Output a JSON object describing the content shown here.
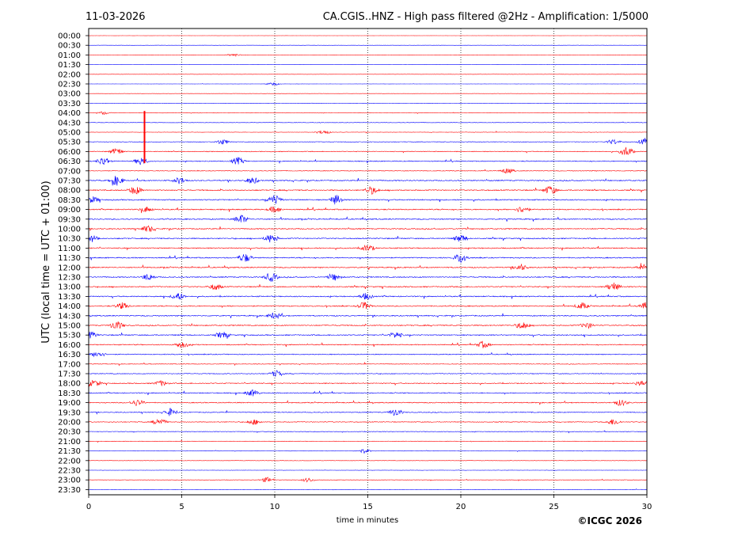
{
  "header": {
    "date": "11-03-2026",
    "title": "CA.CGIS..HNZ - High pass filtered @2Hz - Amplification: 1/5000"
  },
  "footer": {
    "copyright": "©ICGC 2026"
  },
  "colors": {
    "trace_even": "#ff0000",
    "trace_odd": "#0000ff",
    "grid": "#000000",
    "background": "#ffffff"
  },
  "chart_data": {
    "type": "line",
    "xlabel": "time in minutes",
    "ylabel": "UTC (local time = UTC + 01:00)",
    "xlim": [
      0,
      30
    ],
    "xticks": [
      "0",
      "5",
      "10",
      "15",
      "20",
      "25",
      "30"
    ],
    "grid": "vertical dotted at 5, 10, 15, 20, 25",
    "rows": [
      "00:00",
      "00:30",
      "01:00",
      "01:30",
      "02:00",
      "02:30",
      "03:00",
      "03:30",
      "04:00",
      "04:30",
      "05:00",
      "05:30",
      "06:00",
      "06:30",
      "07:00",
      "07:30",
      "08:00",
      "08:30",
      "09:00",
      "09:30",
      "10:00",
      "10:30",
      "11:00",
      "11:30",
      "12:00",
      "12:30",
      "13:00",
      "13:30",
      "14:00",
      "14:30",
      "15:00",
      "15:30",
      "16:00",
      "16:30",
      "17:00",
      "17:30",
      "18:00",
      "18:30",
      "19:00",
      "19:30",
      "20:00",
      "20:30",
      "21:00",
      "21:30",
      "22:00",
      "22:30",
      "23:00",
      "23:30"
    ],
    "trace_colors": "alternating red (even rows) / blue (odd rows)",
    "noise_level": [
      0.15,
      0.15,
      0.15,
      0.15,
      0.15,
      0.15,
      0.15,
      0.2,
      0.3,
      0.35,
      0.4,
      0.5,
      0.7,
      0.8,
      0.6,
      1.0,
      1.0,
      1.0,
      1.0,
      1.0,
      1.0,
      1.0,
      1.0,
      1.0,
      1.0,
      1.0,
      1.0,
      1.0,
      1.0,
      1.0,
      1.0,
      1.0,
      0.9,
      0.8,
      0.6,
      0.7,
      0.9,
      0.9,
      0.9,
      0.8,
      0.7,
      0.5,
      0.4,
      0.35,
      0.3,
      0.3,
      0.35,
      0.3
    ],
    "events": [
      {
        "row": 2,
        "x": 7.8,
        "amp": 0.25
      },
      {
        "row": 5,
        "x": 9.9,
        "amp": 0.3
      },
      {
        "row": 8,
        "x": 0.8,
        "amp": 0.3
      },
      {
        "row": 10,
        "x": 12.6,
        "amp": 0.4
      },
      {
        "row": 11,
        "x": 7.2,
        "amp": 0.5
      },
      {
        "row": 11,
        "x": 28.2,
        "amp": 0.5
      },
      {
        "row": 11,
        "x": 29.9,
        "amp": 0.6
      },
      {
        "row": 12,
        "x": 1.5,
        "amp": 0.6
      },
      {
        "row": 12,
        "x": 28.9,
        "amp": 0.9
      },
      {
        "row": 13,
        "x": 0.8,
        "amp": 0.8
      },
      {
        "row": 13,
        "x": 2.8,
        "amp": 0.7
      },
      {
        "row": 13,
        "x": 8.0,
        "amp": 0.7
      },
      {
        "row": 14,
        "x": 22.5,
        "amp": 0.5
      },
      {
        "row": 15,
        "x": 1.5,
        "amp": 0.9
      },
      {
        "row": 15,
        "x": 4.9,
        "amp": 0.6
      },
      {
        "row": 15,
        "x": 8.8,
        "amp": 0.6
      },
      {
        "row": 16,
        "x": 2.5,
        "amp": 0.8
      },
      {
        "row": 16,
        "x": 15.2,
        "amp": 0.7
      },
      {
        "row": 16,
        "x": 24.8,
        "amp": 0.8
      },
      {
        "row": 17,
        "x": 0.2,
        "amp": 0.6
      },
      {
        "row": 17,
        "x": 10.0,
        "amp": 0.9
      },
      {
        "row": 17,
        "x": 13.3,
        "amp": 0.9
      },
      {
        "row": 18,
        "x": 3.1,
        "amp": 0.5
      },
      {
        "row": 18,
        "x": 10.0,
        "amp": 0.6
      },
      {
        "row": 18,
        "x": 23.3,
        "amp": 0.6
      },
      {
        "row": 19,
        "x": 8.2,
        "amp": 0.8
      },
      {
        "row": 20,
        "x": 3.2,
        "amp": 0.6
      },
      {
        "row": 21,
        "x": 0.2,
        "amp": 0.6
      },
      {
        "row": 21,
        "x": 9.8,
        "amp": 0.8
      },
      {
        "row": 21,
        "x": 20.0,
        "amp": 0.7
      },
      {
        "row": 22,
        "x": 15.0,
        "amp": 0.6
      },
      {
        "row": 23,
        "x": 8.4,
        "amp": 0.8
      },
      {
        "row": 23,
        "x": 20.0,
        "amp": 0.9
      },
      {
        "row": 24,
        "x": 23.2,
        "amp": 0.6
      },
      {
        "row": 24,
        "x": 29.8,
        "amp": 0.5
      },
      {
        "row": 25,
        "x": 3.2,
        "amp": 0.6
      },
      {
        "row": 25,
        "x": 9.8,
        "amp": 0.8
      },
      {
        "row": 25,
        "x": 13.2,
        "amp": 0.6
      },
      {
        "row": 26,
        "x": 6.8,
        "amp": 0.6
      },
      {
        "row": 26,
        "x": 28.2,
        "amp": 0.8
      },
      {
        "row": 27,
        "x": 4.8,
        "amp": 0.7
      },
      {
        "row": 27,
        "x": 14.9,
        "amp": 0.6
      },
      {
        "row": 28,
        "x": 1.8,
        "amp": 0.6
      },
      {
        "row": 28,
        "x": 14.8,
        "amp": 0.7
      },
      {
        "row": 28,
        "x": 26.5,
        "amp": 0.6
      },
      {
        "row": 28,
        "x": 29.9,
        "amp": 0.6
      },
      {
        "row": 29,
        "x": 10.0,
        "amp": 0.6
      },
      {
        "row": 30,
        "x": 1.5,
        "amp": 0.8
      },
      {
        "row": 30,
        "x": 23.3,
        "amp": 0.7
      },
      {
        "row": 30,
        "x": 26.8,
        "amp": 0.5
      },
      {
        "row": 31,
        "x": 0.1,
        "amp": 0.6
      },
      {
        "row": 31,
        "x": 7.2,
        "amp": 0.6
      },
      {
        "row": 31,
        "x": 16.5,
        "amp": 0.6
      },
      {
        "row": 32,
        "x": 5.0,
        "amp": 0.6
      },
      {
        "row": 32,
        "x": 21.2,
        "amp": 0.6
      },
      {
        "row": 33,
        "x": 0.5,
        "amp": 0.6
      },
      {
        "row": 35,
        "x": 10.1,
        "amp": 0.6
      },
      {
        "row": 36,
        "x": 0.3,
        "amp": 0.6
      },
      {
        "row": 36,
        "x": 3.9,
        "amp": 0.5
      },
      {
        "row": 36,
        "x": 29.7,
        "amp": 0.5
      },
      {
        "row": 37,
        "x": 8.8,
        "amp": 0.6
      },
      {
        "row": 38,
        "x": 2.6,
        "amp": 0.6
      },
      {
        "row": 38,
        "x": 28.6,
        "amp": 0.6
      },
      {
        "row": 39,
        "x": 4.4,
        "amp": 0.7
      },
      {
        "row": 39,
        "x": 16.5,
        "amp": 0.7
      },
      {
        "row": 40,
        "x": 3.8,
        "amp": 0.7
      },
      {
        "row": 40,
        "x": 8.9,
        "amp": 0.5
      },
      {
        "row": 40,
        "x": 28.2,
        "amp": 0.6
      },
      {
        "row": 43,
        "x": 14.8,
        "amp": 0.4
      },
      {
        "row": 46,
        "x": 9.6,
        "amp": 0.5
      },
      {
        "row": 46,
        "x": 11.8,
        "amp": 0.4
      }
    ],
    "spike": {
      "row": 8,
      "x": 3.0,
      "top_row_offset": 0.2,
      "bottom_row": 13.2,
      "color": "#ff0000"
    }
  }
}
